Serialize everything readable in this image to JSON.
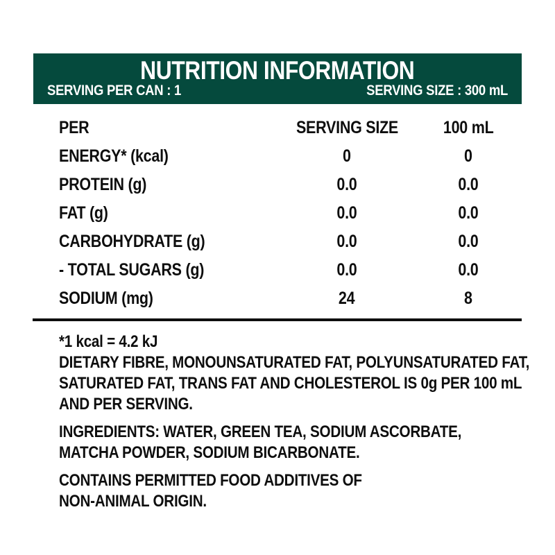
{
  "colors": {
    "header_bg": "#054A3D",
    "header_text": "#FFFFFF",
    "body_text": "#0E0E0E"
  },
  "header": {
    "title": "NUTRITION INFORMATION",
    "serving_per_can": "SERVING PER CAN : 1",
    "serving_size": "SERVING SIZE : 300 mL"
  },
  "table": {
    "columns": [
      "PER",
      "SERVING SIZE",
      "100 mL"
    ],
    "rows": [
      {
        "label": "ENERGY* (kcal)",
        "serving": "0",
        "per_100ml": "0"
      },
      {
        "label": "PROTEIN (g)",
        "serving": "0.0",
        "per_100ml": "0.0"
      },
      {
        "label": "FAT (g)",
        "serving": "0.0",
        "per_100ml": "0.0"
      },
      {
        "label": "CARBOHYDRATE (g)",
        "serving": "0.0",
        "per_100ml": "0.0"
      },
      {
        "label": "- TOTAL SUGARS (g)",
        "serving": "0.0",
        "per_100ml": "0.0"
      },
      {
        "label": "SODIUM (mg)",
        "serving": "24",
        "per_100ml": "8"
      }
    ]
  },
  "footnotes": {
    "kcal_note": "*1 kcal = 4.2 kJ",
    "zero_note_lines": [
      "DIETARY FIBRE, MONOUNSATURATED FAT, POLYUNSATURATED FAT,",
      "SATURATED FAT, TRANS FAT AND CHOLESTEROL IS 0g PER 100 mL",
      "AND PER SERVING."
    ],
    "ingredients_lines": [
      "INGREDIENTS: WATER, GREEN TEA, SODIUM ASCORBATE,",
      "MATCHA POWDER, SODIUM BICARBONATE."
    ],
    "additives_lines": [
      "CONTAINS PERMITTED FOOD ADDITIVES OF",
      "NON-ANIMAL ORIGIN."
    ]
  }
}
